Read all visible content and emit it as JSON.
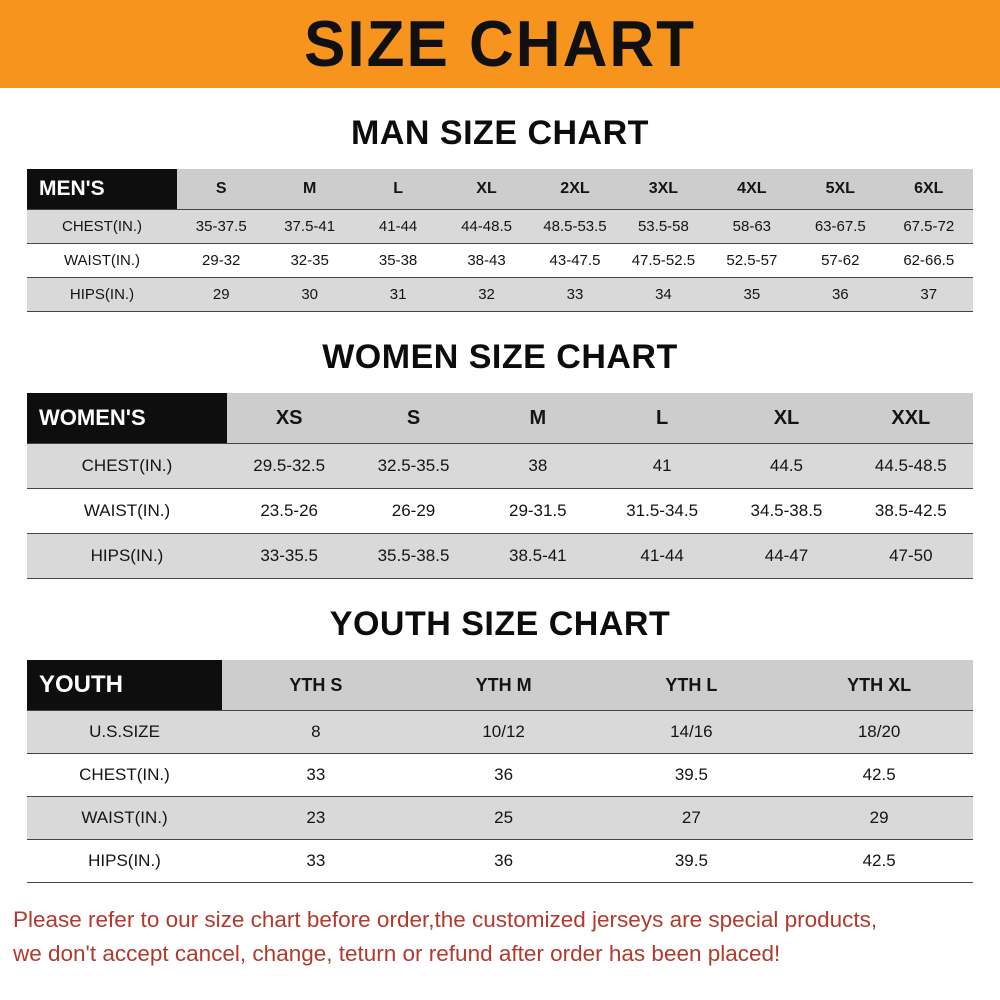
{
  "colors": {
    "banner-bg": "#f7941e",
    "header-black": "#0e0e0e",
    "row-gray": "#d9d9d9",
    "colhead-gray": "#cdcdcd",
    "disclaimer-red": "#b23a2c"
  },
  "banner": {
    "title": "SIZE CHART"
  },
  "sections": [
    {
      "id": "mens",
      "heading": "MAN SIZE CHART",
      "table": {
        "header_label": "MEN'S",
        "columns": [
          "S",
          "M",
          "L",
          "XL",
          "2XL",
          "3XL",
          "4XL",
          "5XL",
          "6XL"
        ],
        "rows": [
          {
            "label": "CHEST(IN.)",
            "values": [
              "35-37.5",
              "37.5-41",
              "41-44",
              "44-48.5",
              "48.5-53.5",
              "53.5-58",
              "58-63",
              "63-67.5",
              "67.5-72"
            ]
          },
          {
            "label": "WAIST(IN.)",
            "values": [
              "29-32",
              "32-35",
              "35-38",
              "38-43",
              "43-47.5",
              "47.5-52.5",
              "52.5-57",
              "57-62",
              "62-66.5"
            ]
          },
          {
            "label": "HIPS(IN.)",
            "values": [
              "29",
              "30",
              "31",
              "32",
              "33",
              "34",
              "35",
              "36",
              "37"
            ]
          }
        ]
      }
    },
    {
      "id": "womens",
      "heading": "WOMEN SIZE CHART",
      "table": {
        "header_label": "WOMEN'S",
        "columns": [
          "XS",
          "S",
          "M",
          "L",
          "XL",
          "XXL"
        ],
        "rows": [
          {
            "label": "CHEST(IN.)",
            "values": [
              "29.5-32.5",
              "32.5-35.5",
              "38",
              "41",
              "44.5",
              "44.5-48.5"
            ]
          },
          {
            "label": "WAIST(IN.)",
            "values": [
              "23.5-26",
              "26-29",
              "29-31.5",
              "31.5-34.5",
              "34.5-38.5",
              "38.5-42.5"
            ]
          },
          {
            "label": "HIPS(IN.)",
            "values": [
              "33-35.5",
              "35.5-38.5",
              "38.5-41",
              "41-44",
              "44-47",
              "47-50"
            ]
          }
        ]
      }
    },
    {
      "id": "youth",
      "heading": "YOUTH SIZE CHART",
      "table": {
        "header_label": "YOUTH",
        "columns": [
          "YTH S",
          "YTH M",
          "YTH L",
          "YTH XL"
        ],
        "rows": [
          {
            "label": "U.S.SIZE",
            "values": [
              "8",
              "10/12",
              "14/16",
              "18/20"
            ]
          },
          {
            "label": "CHEST(IN.)",
            "values": [
              "33",
              "36",
              "39.5",
              "42.5"
            ]
          },
          {
            "label": "WAIST(IN.)",
            "values": [
              "23",
              "25",
              "27",
              "29"
            ]
          },
          {
            "label": "HIPS(IN.)",
            "values": [
              "33",
              "36",
              "39.5",
              "42.5"
            ]
          }
        ]
      }
    }
  ],
  "disclaimer": {
    "line1": "Please refer to our size chart before order,the customized jerseys are special products,",
    "line2": "we don't accept cancel, change, teturn or refund after order has been placed!"
  }
}
